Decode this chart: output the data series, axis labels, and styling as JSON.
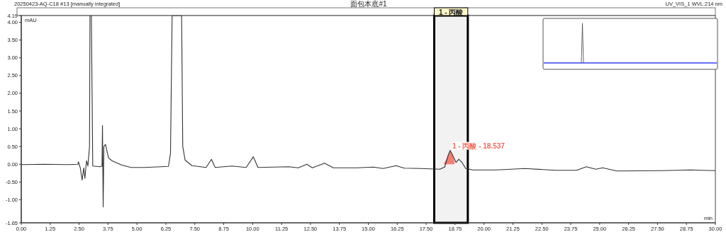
{
  "chart_data": {
    "type": "line",
    "title": "20250423-AQ-C18 #13 [manually integrated]",
    "subtitle": "面包本底#1",
    "xlabel": "min",
    "ylabel": "mAU",
    "xlim": [
      0,
      30
    ],
    "ylim": [
      -1.65,
      4.19
    ],
    "xticks": [
      {
        "value": 0,
        "label": "0.00"
      },
      {
        "value": 1.25,
        "label": "1.25"
      },
      {
        "value": 2.5,
        "label": "2.50"
      },
      {
        "value": 3.75,
        "label": "3.75"
      },
      {
        "value": 5,
        "label": "5.00"
      },
      {
        "value": 6.25,
        "label": "6.25"
      },
      {
        "value": 7.5,
        "label": "7.50"
      },
      {
        "value": 8.75,
        "label": "8.75"
      },
      {
        "value": 10,
        "label": "10.00"
      },
      {
        "value": 11.25,
        "label": "11.25"
      },
      {
        "value": 12.5,
        "label": "12.50"
      },
      {
        "value": 13.75,
        "label": "13.75"
      },
      {
        "value": 15,
        "label": "15.00"
      },
      {
        "value": 16.25,
        "label": "16.25"
      },
      {
        "value": 17.5,
        "label": "17.50"
      },
      {
        "value": 18.75,
        "label": "18.75"
      },
      {
        "value": 20,
        "label": "20.00"
      },
      {
        "value": 21.25,
        "label": "21.25"
      },
      {
        "value": 22.5,
        "label": "22.50"
      },
      {
        "value": 23.75,
        "label": "23.75"
      },
      {
        "value": 25,
        "label": "25.00"
      },
      {
        "value": 26.25,
        "label": "26.25"
      },
      {
        "value": 27.5,
        "label": "27.50"
      },
      {
        "value": 28.75,
        "label": "28.75"
      },
      {
        "value": 30,
        "label": "30.00"
      }
    ],
    "yticks": [
      {
        "value": -1.65,
        "label": "-1.65"
      },
      {
        "value": -1,
        "label": "-1.00"
      },
      {
        "value": -0.5,
        "label": "-0.50"
      },
      {
        "value": 0,
        "label": "0.00"
      },
      {
        "value": 0.5,
        "label": "0.50"
      },
      {
        "value": 1,
        "label": "1.00"
      },
      {
        "value": 1.5,
        "label": "1.50"
      },
      {
        "value": 2,
        "label": "2.00"
      },
      {
        "value": 2.5,
        "label": "2.50"
      },
      {
        "value": 3,
        "label": "3.00"
      },
      {
        "value": 3.5,
        "label": "3.50"
      },
      {
        "value": 4,
        "label": "4.00"
      },
      4.19
    ],
    "series": [
      {
        "type": "area",
        "color": "#f26b5b",
        "x": [
          18.25,
          18.35,
          18.45,
          18.537,
          18.65,
          18.72
        ],
        "values": [
          0,
          0.12,
          0.25,
          0.39,
          0.25,
          0.08
        ]
      },
      {
        "color": "#333333",
        "x": [
          0,
          1,
          2,
          2.45,
          2.47,
          2.55,
          2.63,
          2.7,
          2.75,
          2.82,
          2.88,
          2.95,
          2.97,
          3.03,
          3.09,
          3.41,
          3.49,
          3.51,
          3.54,
          3.57,
          3.64,
          3.77,
          3.92,
          4.33,
          4.74,
          5.35,
          6.36,
          6.45,
          6.52,
          6.93,
          6.98,
          7.08,
          7.38,
          7.99,
          8.22,
          8.38,
          9.11,
          9.72,
          10.03,
          10.23,
          11.56,
          11.97,
          12.34,
          12.58,
          13.11,
          13.49,
          14.51,
          15.23,
          15.64,
          16.2,
          16.56,
          17.28,
          18.09,
          18.3,
          18.45,
          18.537,
          18.65,
          18.79,
          18.91,
          19.05,
          19.21,
          19.52,
          20.54,
          21.77,
          23.09,
          24.01,
          24.42,
          24.83,
          25.13,
          25.74,
          27.68,
          28.91,
          30
        ],
        "values": [
          -0.01,
          0.0,
          -0.01,
          0.0,
          0.07,
          -0.1,
          -0.45,
          -0.1,
          -0.4,
          0.1,
          -0.05,
          0.5,
          4.19,
          4.19,
          -0.05,
          -0.07,
          -0.05,
          1.09,
          -1.2,
          0.5,
          0.56,
          0.18,
          0.1,
          -0.02,
          -0.09,
          -0.09,
          -0.06,
          0.3,
          4.19,
          4.19,
          0.5,
          0.12,
          -0.04,
          -0.09,
          0.14,
          -0.09,
          -0.05,
          -0.09,
          0.21,
          -0.09,
          -0.07,
          -0.1,
          0.0,
          -0.1,
          0.03,
          -0.1,
          -0.1,
          -0.08,
          -0.12,
          -0.04,
          -0.11,
          -0.12,
          -0.14,
          -0.08,
          0.25,
          0.39,
          0.25,
          0.05,
          0.14,
          0.05,
          -0.12,
          -0.16,
          -0.16,
          -0.12,
          -0.17,
          -0.17,
          -0.07,
          -0.14,
          -0.1,
          -0.19,
          -0.18,
          -0.16,
          -0.18
        ]
      }
    ],
    "bands": [
      {
        "axis": "x",
        "from": 17.85,
        "to": 19.3,
        "label": "1 - 丙酸",
        "color": "#000000"
      }
    ],
    "annotations": [
      {
        "text": "1 - 丙酸 - 18.537",
        "x": 18.537,
        "y": 0.39
      },
      "UV_VIS_1 WVL:214 nm"
    ]
  }
}
